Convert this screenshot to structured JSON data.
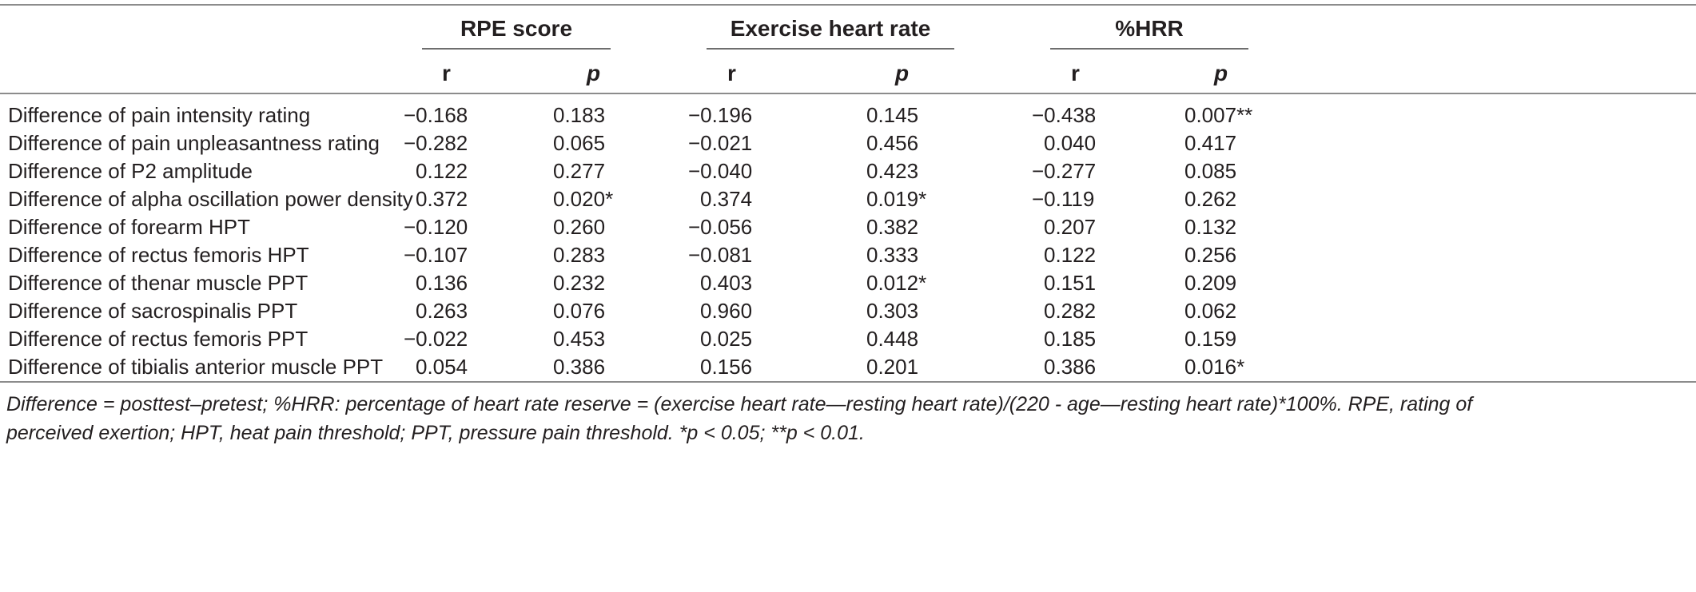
{
  "groups": {
    "rpe": "RPE score",
    "ehr": "Exercise heart rate",
    "hrr": "%HRR"
  },
  "subheaders": {
    "r": "r",
    "p": "p"
  },
  "rows": [
    {
      "label": "Difference of pain intensity rating",
      "v": [
        "−0.168",
        "0.183",
        "−0.196",
        "0.145",
        "−0.438",
        "0.007**"
      ]
    },
    {
      "label": "Difference of pain unpleasantness rating",
      "v": [
        "−0.282",
        "0.065",
        "−0.021",
        "0.456",
        "0.040",
        "0.417"
      ]
    },
    {
      "label": "Difference of P2 amplitude",
      "v": [
        "0.122",
        "0.277",
        "−0.040",
        "0.423",
        "−0.277",
        "0.085"
      ]
    },
    {
      "label": "Difference of alpha oscillation power density",
      "v": [
        "0.372",
        "0.020*",
        "0.374",
        "0.019*",
        "−0.119",
        "0.262"
      ]
    },
    {
      "label": "Difference of forearm HPT",
      "v": [
        "−0.120",
        "0.260",
        "−0.056",
        "0.382",
        "0.207",
        "0.132"
      ]
    },
    {
      "label": "Difference of rectus femoris HPT",
      "v": [
        "−0.107",
        "0.283",
        "−0.081",
        "0.333",
        "0.122",
        "0.256"
      ]
    },
    {
      "label": "Difference of thenar muscle PPT",
      "v": [
        "0.136",
        "0.232",
        "0.403",
        "0.012*",
        "0.151",
        "0.209"
      ]
    },
    {
      "label": "Difference of sacrospinalis PPT",
      "v": [
        "0.263",
        "0.076",
        "0.960",
        "0.303",
        "0.282",
        "0.062"
      ]
    },
    {
      "label": "Difference of rectus femoris PPT",
      "v": [
        "−0.022",
        "0.453",
        "0.025",
        "0.448",
        "0.185",
        "0.159"
      ]
    },
    {
      "label": "Difference of tibialis anterior muscle PPT",
      "v": [
        "0.054",
        "0.386",
        "0.156",
        "0.201",
        "0.386",
        "0.016*"
      ]
    }
  ],
  "footnote_line1": "Difference = posttest–pretest; %HRR: percentage of heart rate reserve = (exercise heart rate—resting heart rate)/(220 - age—resting heart rate)*100%. RPE, rating of",
  "footnote_line2": "perceived exertion; HPT, heat pain threshold; PPT, pressure pain threshold. *p < 0.05; **p < 0.01."
}
